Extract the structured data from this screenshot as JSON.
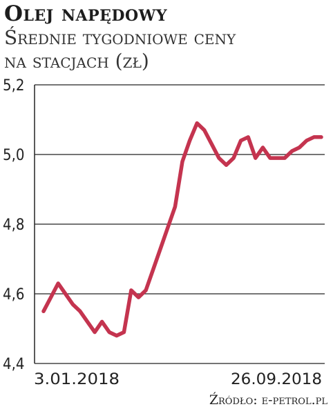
{
  "chart_data": {
    "type": "line",
    "title": "Olej napędowy",
    "subtitle_lines": [
      "Średnie tygodniowe ceny",
      "na stacjach (zł)"
    ],
    "xlabel": "",
    "ylabel": "",
    "x_tick_labels": [
      "3.01.2018",
      "26.09.2018"
    ],
    "x_start": "3.01.2018",
    "x_end": "26.09.2018",
    "ylim": [
      4.4,
      5.2
    ],
    "yticks": [
      "4,4",
      "4,6",
      "4,8",
      "5,0",
      "5,2"
    ],
    "ytick_values": [
      4.4,
      4.6,
      4.8,
      5.0,
      5.2
    ],
    "grid": "horizontal",
    "line_color": "#c4344f",
    "grid_color": "#222222",
    "series": [
      {
        "values": [
          4.55,
          4.59,
          4.63,
          4.6,
          4.57,
          4.55,
          4.52,
          4.49,
          4.52,
          4.49,
          4.48,
          4.49,
          4.61,
          4.59,
          4.61,
          4.67,
          4.73,
          4.79,
          4.85,
          4.98,
          5.04,
          5.09,
          5.07,
          5.03,
          4.99,
          4.97,
          4.99,
          5.04,
          5.05,
          4.99,
          5.02,
          4.99,
          4.99,
          4.99,
          5.01,
          5.02,
          5.04,
          5.05,
          5.05
        ]
      }
    ]
  },
  "source_text": "Źródło: e-petrol.pl"
}
